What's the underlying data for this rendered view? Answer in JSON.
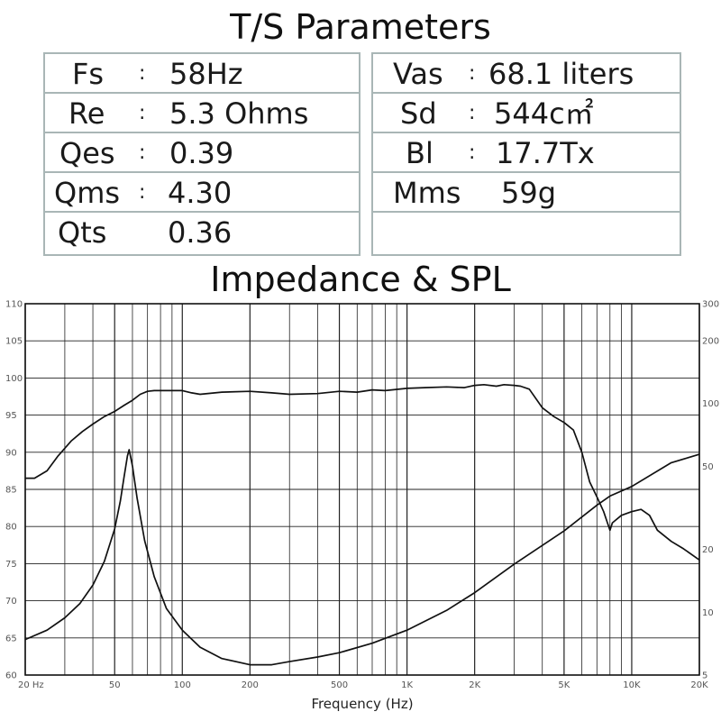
{
  "ts_title": "T/S Parameters",
  "ts_left": [
    {
      "name": "Fs",
      "value": "58Hz"
    },
    {
      "name": "Re",
      "value": "5.3 Ohms"
    },
    {
      "name": "Qes",
      "value": "0.39"
    },
    {
      "name": "Qms",
      "value": "4.30"
    },
    {
      "name": "Qts",
      "value": "0.36"
    }
  ],
  "ts_right": [
    {
      "name": "Vas",
      "value": "68.1 liters"
    },
    {
      "name": "Sd",
      "value": "544c㎡"
    },
    {
      "name": "Bl",
      "value": "17.7Tx"
    },
    {
      "name": "Mms",
      "value": "59g"
    }
  ],
  "colon": ":",
  "chart_data": {
    "type": "line",
    "title": "Impedance & SPL",
    "xlabel": "Frequency (Hz)",
    "x_scale": "log",
    "xlim": [
      20,
      20000
    ],
    "x_ticks": [
      {
        "value": 20,
        "label": "20  Hz"
      },
      {
        "value": 50,
        "label": "50"
      },
      {
        "value": 100,
        "label": "100"
      },
      {
        "value": 200,
        "label": "200"
      },
      {
        "value": 500,
        "label": "500"
      },
      {
        "value": 1000,
        "label": "1K"
      },
      {
        "value": 2000,
        "label": "2K"
      },
      {
        "value": 5000,
        "label": "5K"
      },
      {
        "value": 10000,
        "label": "10K"
      },
      {
        "value": 20000,
        "label": "20K"
      }
    ],
    "ylim_left": [
      60,
      110
    ],
    "y_ticks_left": [
      60,
      65,
      70,
      75,
      80,
      85,
      90,
      95,
      100,
      105,
      110
    ],
    "y_scale_right": "log",
    "ylim_right": [
      5,
      300
    ],
    "y_ticks_right": [
      5,
      10,
      20,
      50,
      100,
      200,
      300
    ],
    "grid": true,
    "series": [
      {
        "axis": "left",
        "x": [
          20,
          22,
          25,
          28,
          32,
          36,
          40,
          45,
          50,
          55,
          60,
          65,
          70,
          75,
          80,
          90,
          100,
          110,
          120,
          150,
          200,
          250,
          300,
          400,
          500,
          600,
          700,
          800,
          1000,
          1200,
          1500,
          1800,
          2000,
          2200,
          2500,
          2700,
          3000,
          3200,
          3500,
          4000,
          4500,
          5000,
          5500,
          6000,
          6500,
          7000,
          7500,
          7800,
          8000,
          8200,
          9000,
          10000,
          11000,
          12000,
          13000,
          15000,
          17000,
          20000
        ],
        "y": [
          86.5,
          86.5,
          87.5,
          89.5,
          91.5,
          92.8,
          93.8,
          94.8,
          95.5,
          96.3,
          97.0,
          97.8,
          98.2,
          98.3,
          98.3,
          98.3,
          98.3,
          98.0,
          97.8,
          98.1,
          98.2,
          98.0,
          97.8,
          97.9,
          98.2,
          98.1,
          98.4,
          98.3,
          98.6,
          98.7,
          98.8,
          98.7,
          99.0,
          99.1,
          98.9,
          99.1,
          99.0,
          98.9,
          98.5,
          96.0,
          94.8,
          94.0,
          93.0,
          90.0,
          86.0,
          84.0,
          82.0,
          80.5,
          79.5,
          80.5,
          81.5,
          82.0,
          82.3,
          81.5,
          79.5,
          78.0,
          77.0,
          75.5
        ]
      },
      {
        "axis": "right",
        "x": [
          20,
          25,
          30,
          35,
          40,
          45,
          50,
          53,
          55,
          57,
          58,
          60,
          63,
          68,
          75,
          85,
          100,
          120,
          150,
          200,
          250,
          300,
          400,
          500,
          700,
          1000,
          1500,
          2000,
          3000,
          5000,
          7000,
          8000,
          10000,
          15000,
          20000
        ],
        "y": [
          7.4,
          8.2,
          9.4,
          11.0,
          13.5,
          17.5,
          25,
          34,
          44,
          56,
          60,
          50,
          35,
          22,
          14.8,
          10.4,
          8.2,
          6.8,
          6.0,
          5.6,
          5.6,
          5.8,
          6.1,
          6.4,
          7.1,
          8.2,
          10.2,
          12.4,
          17.0,
          24.5,
          32.5,
          36.0,
          40.0,
          52.0,
          57.0
        ]
      }
    ]
  }
}
